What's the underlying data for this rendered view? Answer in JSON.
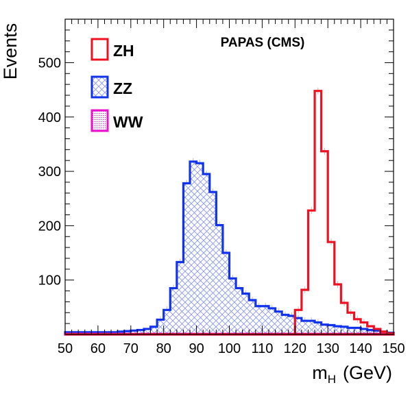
{
  "chart_data": {
    "type": "histogram",
    "title": "PAPAS (CMS)",
    "xlabel": {
      "main": "m",
      "sub": "H",
      "unit": "(GeV)"
    },
    "ylabel": "Events",
    "xlim": [
      50,
      150
    ],
    "ylim": [
      0,
      580
    ],
    "x_ticks": [
      50,
      60,
      70,
      80,
      90,
      100,
      110,
      120,
      130,
      140,
      150
    ],
    "y_ticks": [
      100,
      200,
      300,
      400,
      500
    ],
    "bin_width": 2,
    "bin_edges_start": 50,
    "legend_position": "top-left",
    "series": [
      {
        "name": "ZH",
        "color": "#ee1122",
        "fill": "none",
        "values": [
          0,
          0,
          0,
          0,
          0,
          0,
          0,
          0,
          0,
          0,
          0,
          0,
          0,
          0,
          0,
          0,
          0,
          0,
          0,
          0,
          0,
          0,
          0,
          0,
          0,
          0,
          0,
          0,
          0,
          0,
          0,
          0,
          0,
          0,
          0,
          45,
          82,
          228,
          448,
          337,
          170,
          92,
          58,
          40,
          28,
          22,
          15,
          10,
          5,
          2
        ]
      },
      {
        "name": "ZZ",
        "color": "#1133ee",
        "fill": "hatch",
        "values": [
          4,
          4,
          4,
          4,
          4,
          4,
          4,
          4,
          5,
          6,
          7,
          8,
          10,
          14,
          27,
          45,
          85,
          133,
          278,
          318,
          315,
          295,
          262,
          201,
          150,
          103,
          85,
          75,
          63,
          52,
          52,
          48,
          42,
          36,
          34,
          30,
          25,
          25,
          22,
          18,
          17,
          15,
          14,
          12,
          12,
          10,
          8,
          7,
          5,
          3
        ]
      },
      {
        "name": "WW",
        "color": "#ee11cc",
        "fill": "dots",
        "values": [
          1,
          1,
          1,
          1,
          1,
          1,
          1,
          1,
          1,
          1,
          1,
          1,
          1,
          1,
          1,
          1,
          1,
          1,
          1,
          1,
          1,
          1,
          1,
          1,
          1,
          1,
          1,
          1,
          1,
          1,
          1,
          1,
          1,
          1,
          1,
          1,
          1,
          1,
          1,
          1,
          1,
          1,
          1,
          1,
          1,
          1,
          1,
          1,
          1,
          1
        ]
      }
    ]
  }
}
